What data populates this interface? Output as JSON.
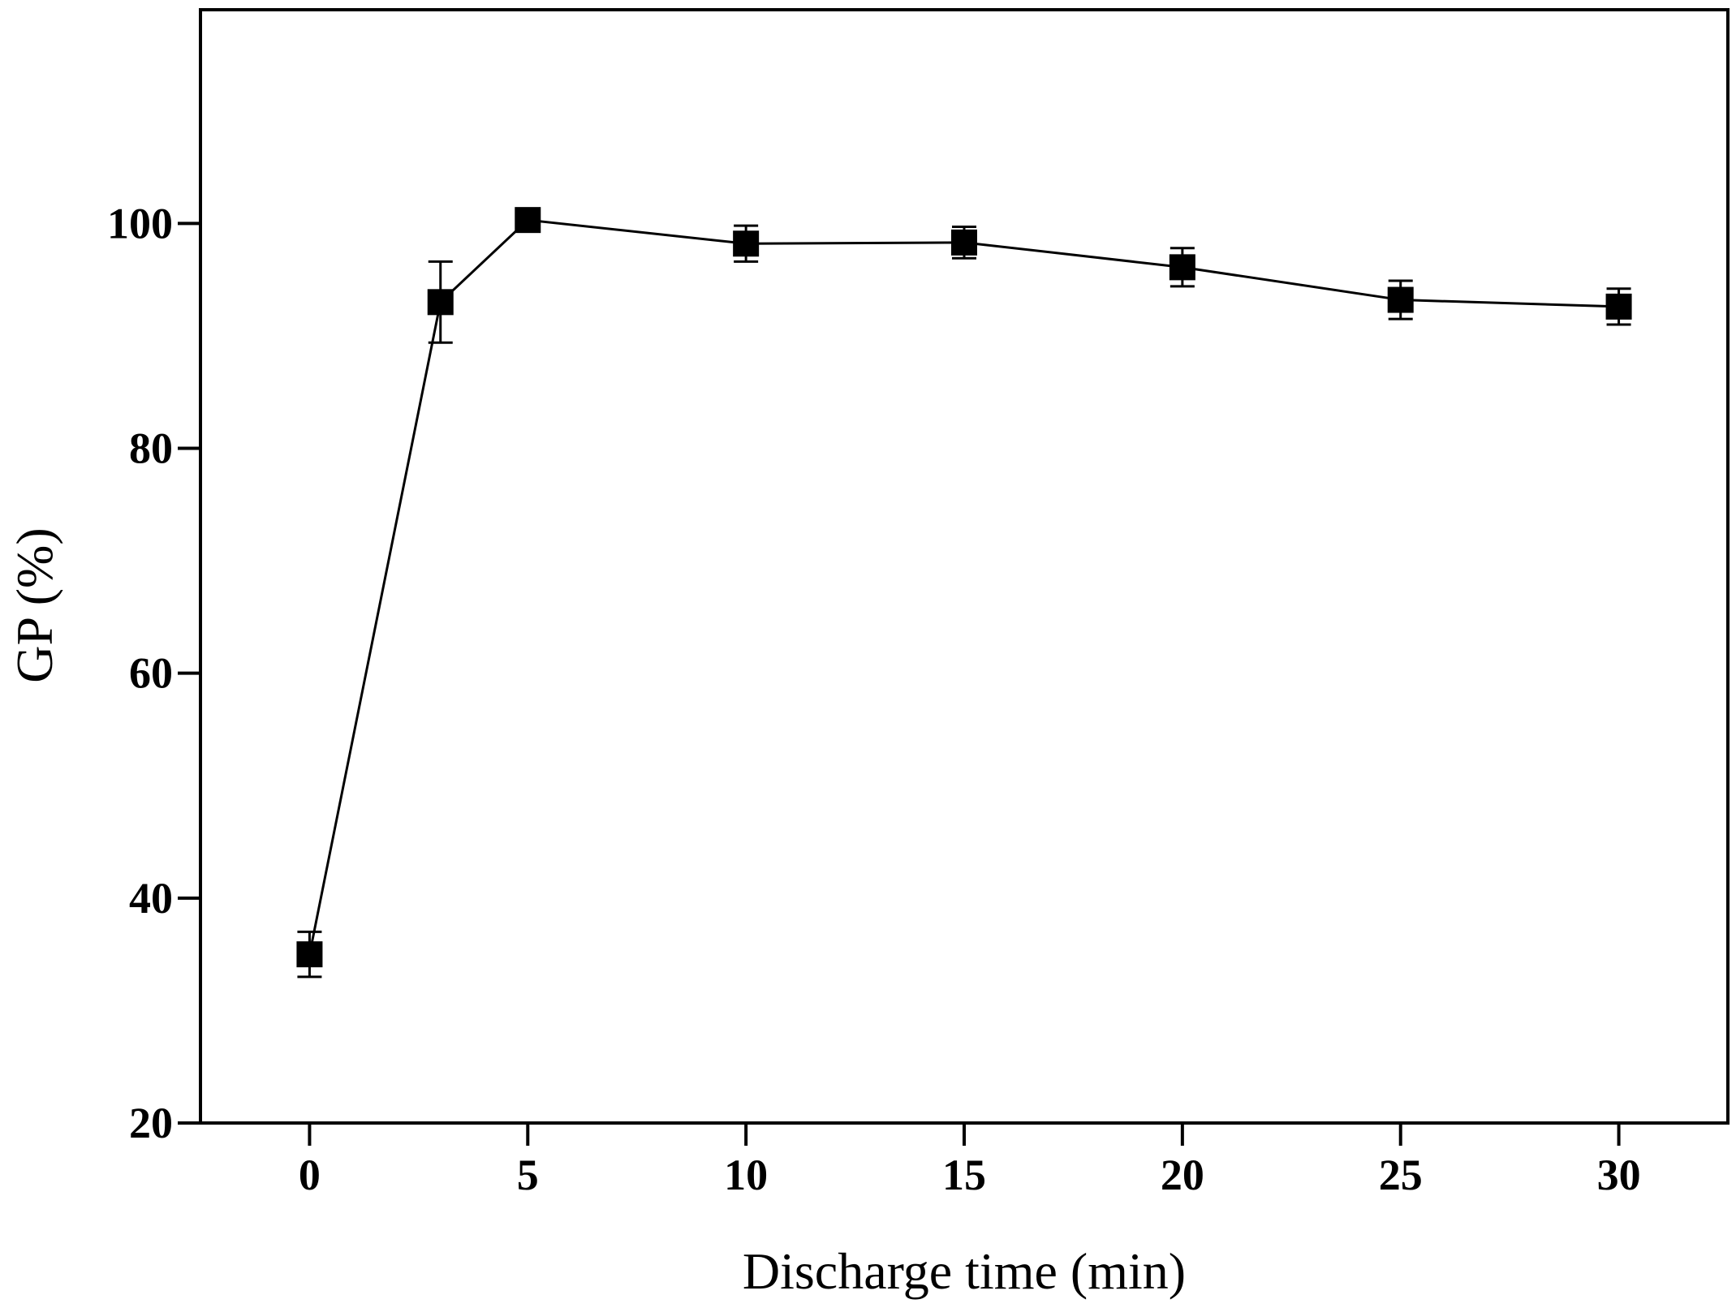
{
  "chart_data": {
    "type": "line",
    "title": "",
    "xlabel": "Discharge time (min)",
    "ylabel": "GP (%)",
    "xlim": [
      -2.5,
      32.5
    ],
    "ylim": [
      20,
      119
    ],
    "xticks": [
      0,
      5,
      10,
      15,
      20,
      25,
      30
    ],
    "yticks": [
      20,
      40,
      60,
      80,
      100
    ],
    "grid": false,
    "legend": "none",
    "series": [
      {
        "name": "GP",
        "marker": "square",
        "color": "#000000",
        "x": [
          0,
          3,
          5,
          10,
          15,
          20,
          25,
          30
        ],
        "y": [
          35.0,
          93.0,
          100.3,
          98.2,
          98.3,
          96.1,
          93.2,
          92.6
        ],
        "yerr": [
          2.0,
          3.6,
          0.4,
          1.6,
          1.4,
          1.7,
          1.7,
          1.6
        ]
      }
    ]
  }
}
